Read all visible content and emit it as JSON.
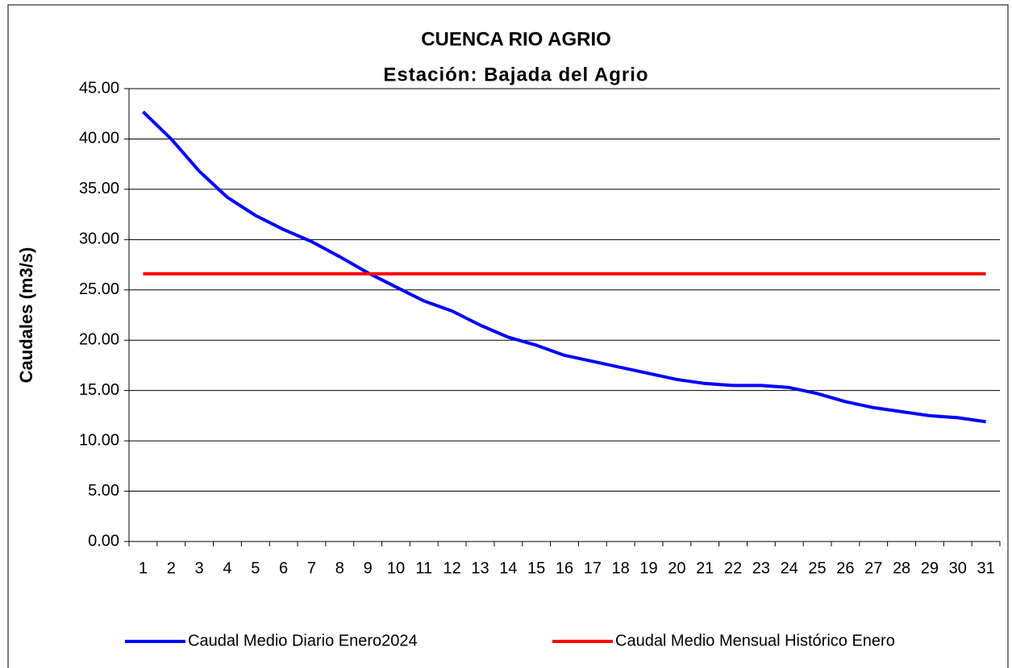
{
  "chart_data": {
    "type": "line",
    "title": "CUENCA RIO AGRIO",
    "subtitle": "Estación: Bajada del Agrio",
    "y_label": "Caudales (m3/s)",
    "categories": [
      "1",
      "2",
      "3",
      "4",
      "5",
      "6",
      "7",
      "8",
      "9",
      "10",
      "11",
      "12",
      "13",
      "14",
      "15",
      "16",
      "17",
      "18",
      "19",
      "20",
      "21",
      "22",
      "23",
      "24",
      "25",
      "26",
      "27",
      "28",
      "29",
      "30",
      "31"
    ],
    "series": [
      {
        "name": "Caudal Medio Diario Enero2024",
        "color": "#0000ff",
        "values": [
          42.7,
          40.0,
          36.8,
          34.2,
          32.4,
          31.0,
          29.8,
          28.3,
          26.7,
          25.3,
          23.9,
          22.9,
          21.5,
          20.3,
          19.5,
          18.5,
          17.9,
          17.3,
          16.7,
          16.1,
          15.7,
          15.5,
          15.5,
          15.3,
          14.7,
          13.9,
          13.3,
          12.9,
          12.5,
          12.3,
          11.9
        ]
      },
      {
        "name": "Caudal Medio Mensual Histórico Enero",
        "color": "#ff0000",
        "values": [
          26.6,
          26.6,
          26.6,
          26.6,
          26.6,
          26.6,
          26.6,
          26.6,
          26.6,
          26.6,
          26.6,
          26.6,
          26.6,
          26.6,
          26.6,
          26.6,
          26.6,
          26.6,
          26.6,
          26.6,
          26.6,
          26.6,
          26.6,
          26.6,
          26.6,
          26.6,
          26.6,
          26.6,
          26.6,
          26.6,
          26.6
        ]
      }
    ],
    "ylim": [
      0,
      45
    ],
    "yticks": [
      {
        "value": 0,
        "label": "0.00"
      },
      {
        "value": 5,
        "label": "5.00"
      },
      {
        "value": 10,
        "label": "10.00"
      },
      {
        "value": 15,
        "label": "15.00"
      },
      {
        "value": 20,
        "label": "20.00"
      },
      {
        "value": 25,
        "label": "25.00"
      },
      {
        "value": 30,
        "label": "30.00"
      },
      {
        "value": 35,
        "label": "35.00"
      },
      {
        "value": 40,
        "label": "40.00"
      },
      {
        "value": 45,
        "label": "45.00"
      }
    ],
    "grid": true,
    "legend": "bottom"
  }
}
